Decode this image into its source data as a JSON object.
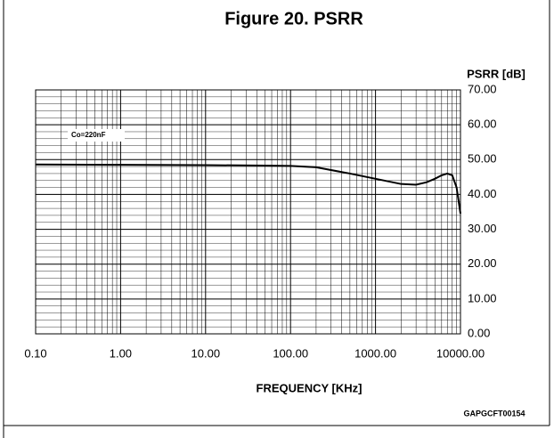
{
  "chart_data": {
    "type": "line",
    "title": "Figure 20. PSRR",
    "x_label": "FREQUENCY [KHz]",
    "y_label": "PSRR [dB]",
    "annotation": "Co=220nF",
    "code": "GAPGCFT00154",
    "log_x": true,
    "grid": true,
    "x": [
      0.1,
      1,
      10,
      50,
      100,
      200,
      500,
      1000,
      2000,
      3000,
      4000,
      5000,
      6000,
      7000,
      8000,
      9000,
      10000
    ],
    "series": [
      {
        "name": "PSRR",
        "color": "#000000",
        "values": [
          48.6,
          48.5,
          48.4,
          48.3,
          48.2,
          47.8,
          46,
          44.5,
          43,
          42.8,
          43.5,
          44.5,
          45.5,
          46,
          45.5,
          42,
          34.5
        ]
      }
    ],
    "xlim": [
      0.1,
      10000
    ],
    "xticks": [
      {
        "value": 0.1,
        "label": "0.10"
      },
      {
        "value": 1,
        "label": "1.00"
      },
      {
        "value": 10,
        "label": "10.00"
      },
      {
        "value": 100,
        "label": "100.00"
      },
      {
        "value": 1000,
        "label": "1000.00"
      },
      {
        "value": 10000,
        "label": "10000.00"
      }
    ],
    "ylim": [
      0,
      70
    ],
    "yticks": [
      {
        "value": 0,
        "label": "0.00"
      },
      {
        "value": 10,
        "label": "10.00"
      },
      {
        "value": 20,
        "label": "20.00"
      },
      {
        "value": 30,
        "label": "30.00"
      },
      {
        "value": 40,
        "label": "40.00"
      },
      {
        "value": 50,
        "label": "50.00"
      },
      {
        "value": 60,
        "label": "60.00"
      },
      {
        "value": 70,
        "label": "70.00"
      }
    ]
  }
}
